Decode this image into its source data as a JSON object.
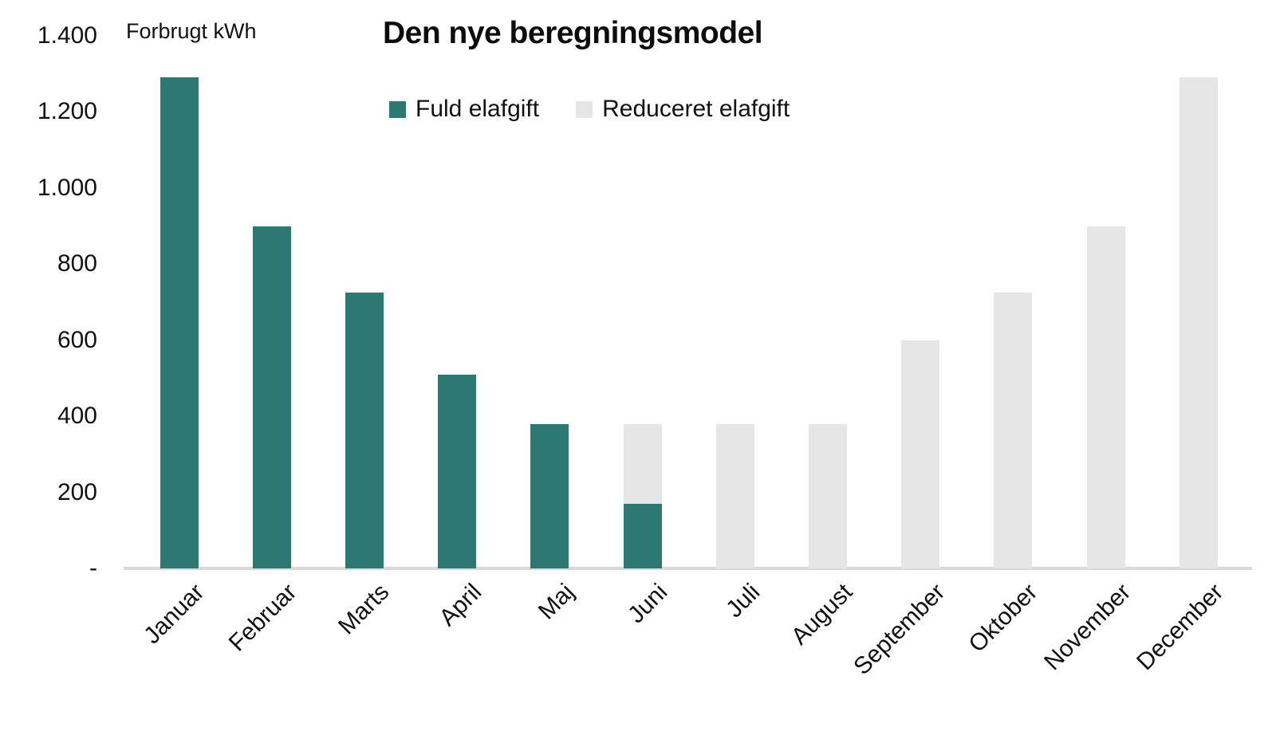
{
  "chart_data": {
    "type": "bar",
    "stacked": true,
    "title": "Den nye beregningsmodel",
    "ylabel": "Forbrugt kWh",
    "xlabel": "",
    "categories": [
      "Januar",
      "Februar",
      "Marts",
      "April",
      "Maj",
      "Juni",
      "Juli",
      "August",
      "September",
      "Oktober",
      "November",
      "December"
    ],
    "series": [
      {
        "name": "Fuld elafgift",
        "color": "#2E7873",
        "values": [
          1290,
          900,
          725,
          510,
          380,
          170,
          0,
          0,
          0,
          0,
          0,
          0
        ]
      },
      {
        "name": "Reduceret elafgift",
        "color": "#E6E6E6",
        "values": [
          0,
          0,
          0,
          0,
          0,
          210,
          380,
          380,
          600,
          725,
          900,
          1290
        ]
      }
    ],
    "ylim": [
      0,
      1400
    ],
    "yticks": {
      "values": [
        1400,
        1200,
        1000,
        800,
        600,
        400,
        200,
        0
      ],
      "labels": [
        "1.400",
        "1.200",
        "1.000",
        "800",
        "600",
        "400",
        "200",
        "-"
      ]
    },
    "grid": false,
    "legend_position": "top-center",
    "axis_line_color": "#D9D9D9",
    "x_label_rotation_deg": -45
  }
}
